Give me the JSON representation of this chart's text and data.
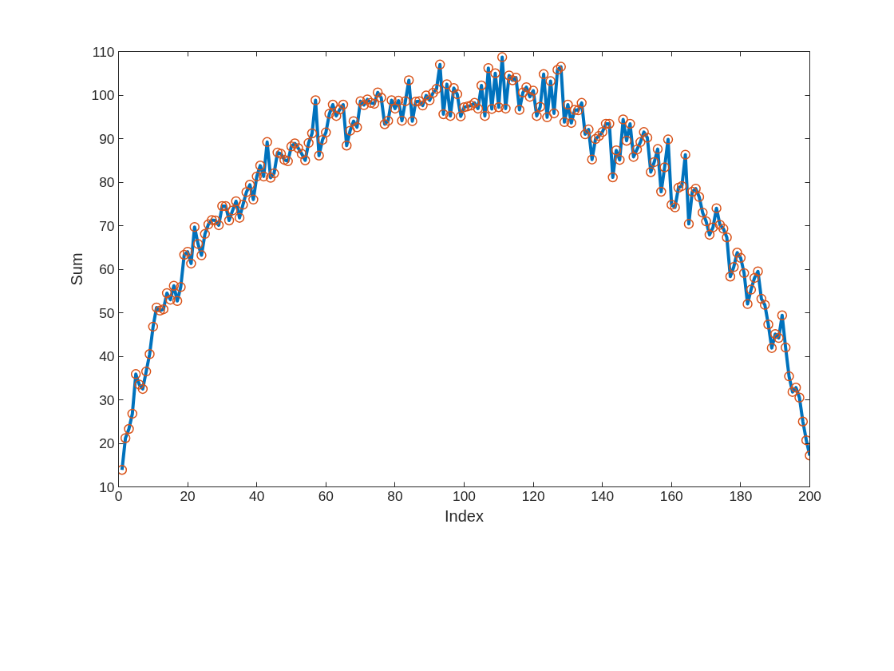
{
  "chart_data": {
    "type": "line",
    "xlabel": "Index",
    "ylabel": "Sum",
    "x": [
      1,
      2,
      3,
      4,
      5,
      6,
      7,
      8,
      9,
      10,
      11,
      12,
      13,
      14,
      15,
      16,
      17,
      18,
      19,
      20,
      21,
      22,
      23,
      24,
      25,
      26,
      27,
      28,
      29,
      30,
      31,
      32,
      33,
      34,
      35,
      36,
      37,
      38,
      39,
      40,
      41,
      42,
      43,
      44,
      45,
      46,
      47,
      48,
      49,
      50,
      51,
      52,
      53,
      54,
      55,
      56,
      57,
      58,
      59,
      60,
      61,
      62,
      63,
      64,
      65,
      66,
      67,
      68,
      69,
      70,
      71,
      72,
      73,
      74,
      75,
      76,
      77,
      78,
      79,
      80,
      81,
      82,
      83,
      84,
      85,
      86,
      87,
      88,
      89,
      90,
      91,
      92,
      93,
      94,
      95,
      96,
      97,
      98,
      99,
      100,
      101,
      102,
      103,
      104,
      105,
      106,
      107,
      108,
      109,
      110,
      111,
      112,
      113,
      114,
      115,
      116,
      117,
      118,
      119,
      120,
      121,
      122,
      123,
      124,
      125,
      126,
      127,
      128,
      129,
      130,
      131,
      132,
      133,
      134,
      135,
      136,
      137,
      138,
      139,
      140,
      141,
      142,
      143,
      144,
      145,
      146,
      147,
      148,
      149,
      150,
      151,
      152,
      153,
      154,
      155,
      156,
      157,
      158,
      159,
      160,
      161,
      162,
      163,
      164,
      165,
      166,
      167,
      168,
      169,
      170,
      171,
      172,
      173,
      174,
      175,
      176,
      177,
      178,
      179,
      180,
      181,
      182,
      183,
      184,
      185,
      186,
      187,
      188,
      189,
      190,
      191,
      192,
      193,
      194,
      195,
      196,
      197,
      198,
      199,
      200
    ],
    "xlim": [
      0,
      200
    ],
    "xticks": [
      0,
      20,
      40,
      60,
      80,
      100,
      120,
      140,
      160,
      180,
      200
    ],
    "ylim": [
      10,
      110
    ],
    "yticks": [
      10,
      20,
      30,
      40,
      50,
      60,
      70,
      80,
      90,
      100,
      110
    ],
    "grid": false,
    "series": [
      {
        "color": "#0072bd",
        "marker": "none",
        "line_style": "solid",
        "values": [
          13.9,
          21.2,
          23.3,
          26.8,
          35.9,
          33.5,
          32.5,
          36.5,
          40.5,
          46.8,
          51.2,
          50.5,
          50.8,
          54.5,
          53,
          56.2,
          52.7,
          55.9,
          63.3,
          64,
          61.3,
          69.7,
          65.8,
          63.2,
          68.1,
          70.3,
          71.3,
          71.2,
          70.1,
          74.5,
          74.5,
          71.2,
          73.5,
          75.6,
          71.8,
          74.8,
          77.7,
          79.4,
          76,
          81.3,
          83.8,
          81.3,
          89.2,
          81,
          82,
          86.8,
          86.5,
          85.1,
          84.8,
          88.2,
          88.9,
          87.8,
          86.5,
          85,
          89,
          91.2,
          98.8,
          86.1,
          89.7,
          91.4,
          95.7,
          97.8,
          95.2,
          96.7,
          97.8,
          88.4,
          91.8,
          94,
          92.6,
          98.6,
          97.7,
          99,
          98.2,
          98,
          100.6,
          99.4,
          93.3,
          94.1,
          98.8,
          96.9,
          98.7,
          94.1,
          98.6,
          103.4,
          94,
          98.5,
          98.6,
          97.6,
          99.9,
          98.8,
          100.5,
          101.4,
          107,
          95.6,
          102.5,
          95.2,
          101.6,
          100.2,
          95.1,
          97.2,
          97.4,
          97.6,
          98.2,
          96.9,
          102.2,
          95.2,
          106.2,
          96.8,
          105,
          97.2,
          108.7,
          96.9,
          104.5,
          103.4,
          104,
          96.6,
          100.6,
          101.8,
          99.6,
          101,
          95.2,
          97.3,
          104.8,
          94.9,
          103.2,
          95.8,
          105.8,
          106.5,
          93.8,
          97.8,
          93.6,
          96.6,
          96.5,
          98.2,
          91,
          92.1,
          85.2,
          89.9,
          90.6,
          91.5,
          93.4,
          93.4,
          81.1,
          87.3,
          85.1,
          94.4,
          89.5,
          93.4,
          85.8,
          87.5,
          89.2,
          91.5,
          90.2,
          82.3,
          84.6,
          87.6,
          77.8,
          83.4,
          89.8,
          74.8,
          74.2,
          78.7,
          79.1,
          86.3,
          70.4,
          77.8,
          78.5,
          76.6,
          73,
          71,
          67.9,
          69.6,
          74,
          70.2,
          69.3,
          67.3,
          58.3,
          60.5,
          63.8,
          62.6,
          59.1,
          52,
          55.3,
          58,
          59.5,
          53.2,
          51.8,
          47.3,
          41.9,
          45.1,
          44.2,
          49.4,
          42,
          35.4,
          31.8,
          32.8,
          30.5,
          25,
          20.7,
          17.2
        ]
      },
      {
        "type": "scatter",
        "color": "#d95319",
        "marker": "circle",
        "values": [
          13.9,
          21.2,
          23.3,
          26.8,
          35.9,
          33.5,
          32.5,
          36.5,
          40.5,
          46.8,
          51.2,
          50.5,
          50.8,
          54.5,
          53,
          56.2,
          52.7,
          55.9,
          63.3,
          64,
          61.3,
          69.7,
          65.8,
          63.2,
          68.1,
          70.3,
          71.3,
          71.2,
          70.1,
          74.5,
          74.5,
          71.2,
          73.5,
          75.6,
          71.8,
          74.8,
          77.7,
          79.4,
          76,
          81.3,
          83.8,
          81.3,
          89.2,
          81,
          82,
          86.8,
          86.5,
          85.1,
          84.8,
          88.2,
          88.9,
          87.8,
          86.5,
          85,
          89,
          91.2,
          98.8,
          86.1,
          89.7,
          91.4,
          95.7,
          97.8,
          95.2,
          96.7,
          97.8,
          88.4,
          91.8,
          94,
          92.6,
          98.6,
          97.7,
          99,
          98.2,
          98,
          100.6,
          99.4,
          93.3,
          94.1,
          98.8,
          96.9,
          98.7,
          94.1,
          98.6,
          103.4,
          94,
          98.5,
          98.6,
          97.6,
          99.9,
          98.8,
          100.5,
          101.4,
          107,
          95.6,
          102.5,
          95.2,
          101.6,
          100.2,
          95.1,
          97.2,
          97.4,
          97.6,
          98.2,
          96.9,
          102.2,
          95.2,
          106.2,
          96.8,
          105,
          97.2,
          108.7,
          96.9,
          104.5,
          103.4,
          104,
          96.6,
          100.6,
          101.8,
          99.6,
          101,
          95.2,
          97.3,
          104.8,
          94.9,
          103.2,
          95.8,
          105.8,
          106.5,
          93.8,
          97.8,
          93.6,
          96.6,
          96.5,
          98.2,
          91,
          92.1,
          85.2,
          89.9,
          90.6,
          91.5,
          93.4,
          93.4,
          81.1,
          87.3,
          85.1,
          94.4,
          89.5,
          93.4,
          85.8,
          87.5,
          89.2,
          91.5,
          90.2,
          82.3,
          84.6,
          87.6,
          77.8,
          83.4,
          89.8,
          74.8,
          74.2,
          78.7,
          79.1,
          86.3,
          70.4,
          77.8,
          78.5,
          76.6,
          73,
          71,
          67.9,
          69.6,
          74,
          70.2,
          69.3,
          67.3,
          58.3,
          60.5,
          63.8,
          62.6,
          59.1,
          52,
          55.3,
          58,
          59.5,
          53.2,
          51.8,
          47.3,
          41.9,
          45.1,
          44.2,
          49.4,
          42,
          35.4,
          31.8,
          32.8,
          30.5,
          25,
          20.7,
          17.2
        ]
      }
    ]
  }
}
